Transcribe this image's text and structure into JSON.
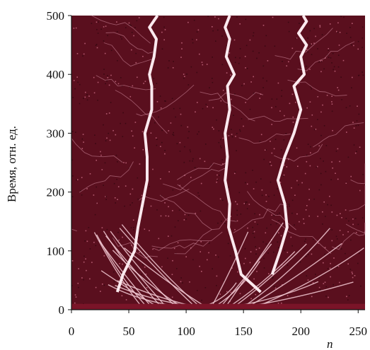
{
  "chart_data": {
    "type": "heatmap",
    "title": "",
    "xlabel": "n",
    "ylabel": "Время, отн. ед.",
    "xlim": [
      0,
      256
    ],
    "ylim": [
      0,
      500
    ],
    "xticks": [
      "0",
      "50",
      "100",
      "150",
      "200",
      "250"
    ],
    "yticks": [
      "0",
      "100",
      "200",
      "300",
      "400",
      "500"
    ],
    "grid": false,
    "colors": {
      "background": "#5a0f1e",
      "base": "#7a1428",
      "trace": "#fbe9ee"
    },
    "main_tracks": [
      {
        "x": [
          40,
          45,
          55,
          58,
          62,
          66,
          66,
          64,
          70,
          70,
          68,
          72,
          74,
          68,
          75
        ],
        "y": [
          30,
          60,
          100,
          140,
          180,
          220,
          260,
          300,
          340,
          380,
          400,
          430,
          460,
          480,
          500
        ]
      },
      {
        "x": [
          165,
          148,
          143,
          137,
          138,
          134,
          136,
          134,
          138,
          136,
          142,
          135,
          138,
          134,
          138
        ],
        "y": [
          30,
          60,
          100,
          140,
          180,
          220,
          260,
          300,
          340,
          380,
          400,
          430,
          460,
          480,
          500
        ]
      },
      {
        "x": [
          175,
          182,
          188,
          186,
          180,
          186,
          194,
          200,
          194,
          203,
          200,
          205,
          198,
          205,
          202
        ],
        "y": [
          60,
          100,
          140,
          180,
          220,
          260,
          300,
          340,
          380,
          400,
          430,
          450,
          470,
          490,
          500
        ]
      }
    ]
  }
}
